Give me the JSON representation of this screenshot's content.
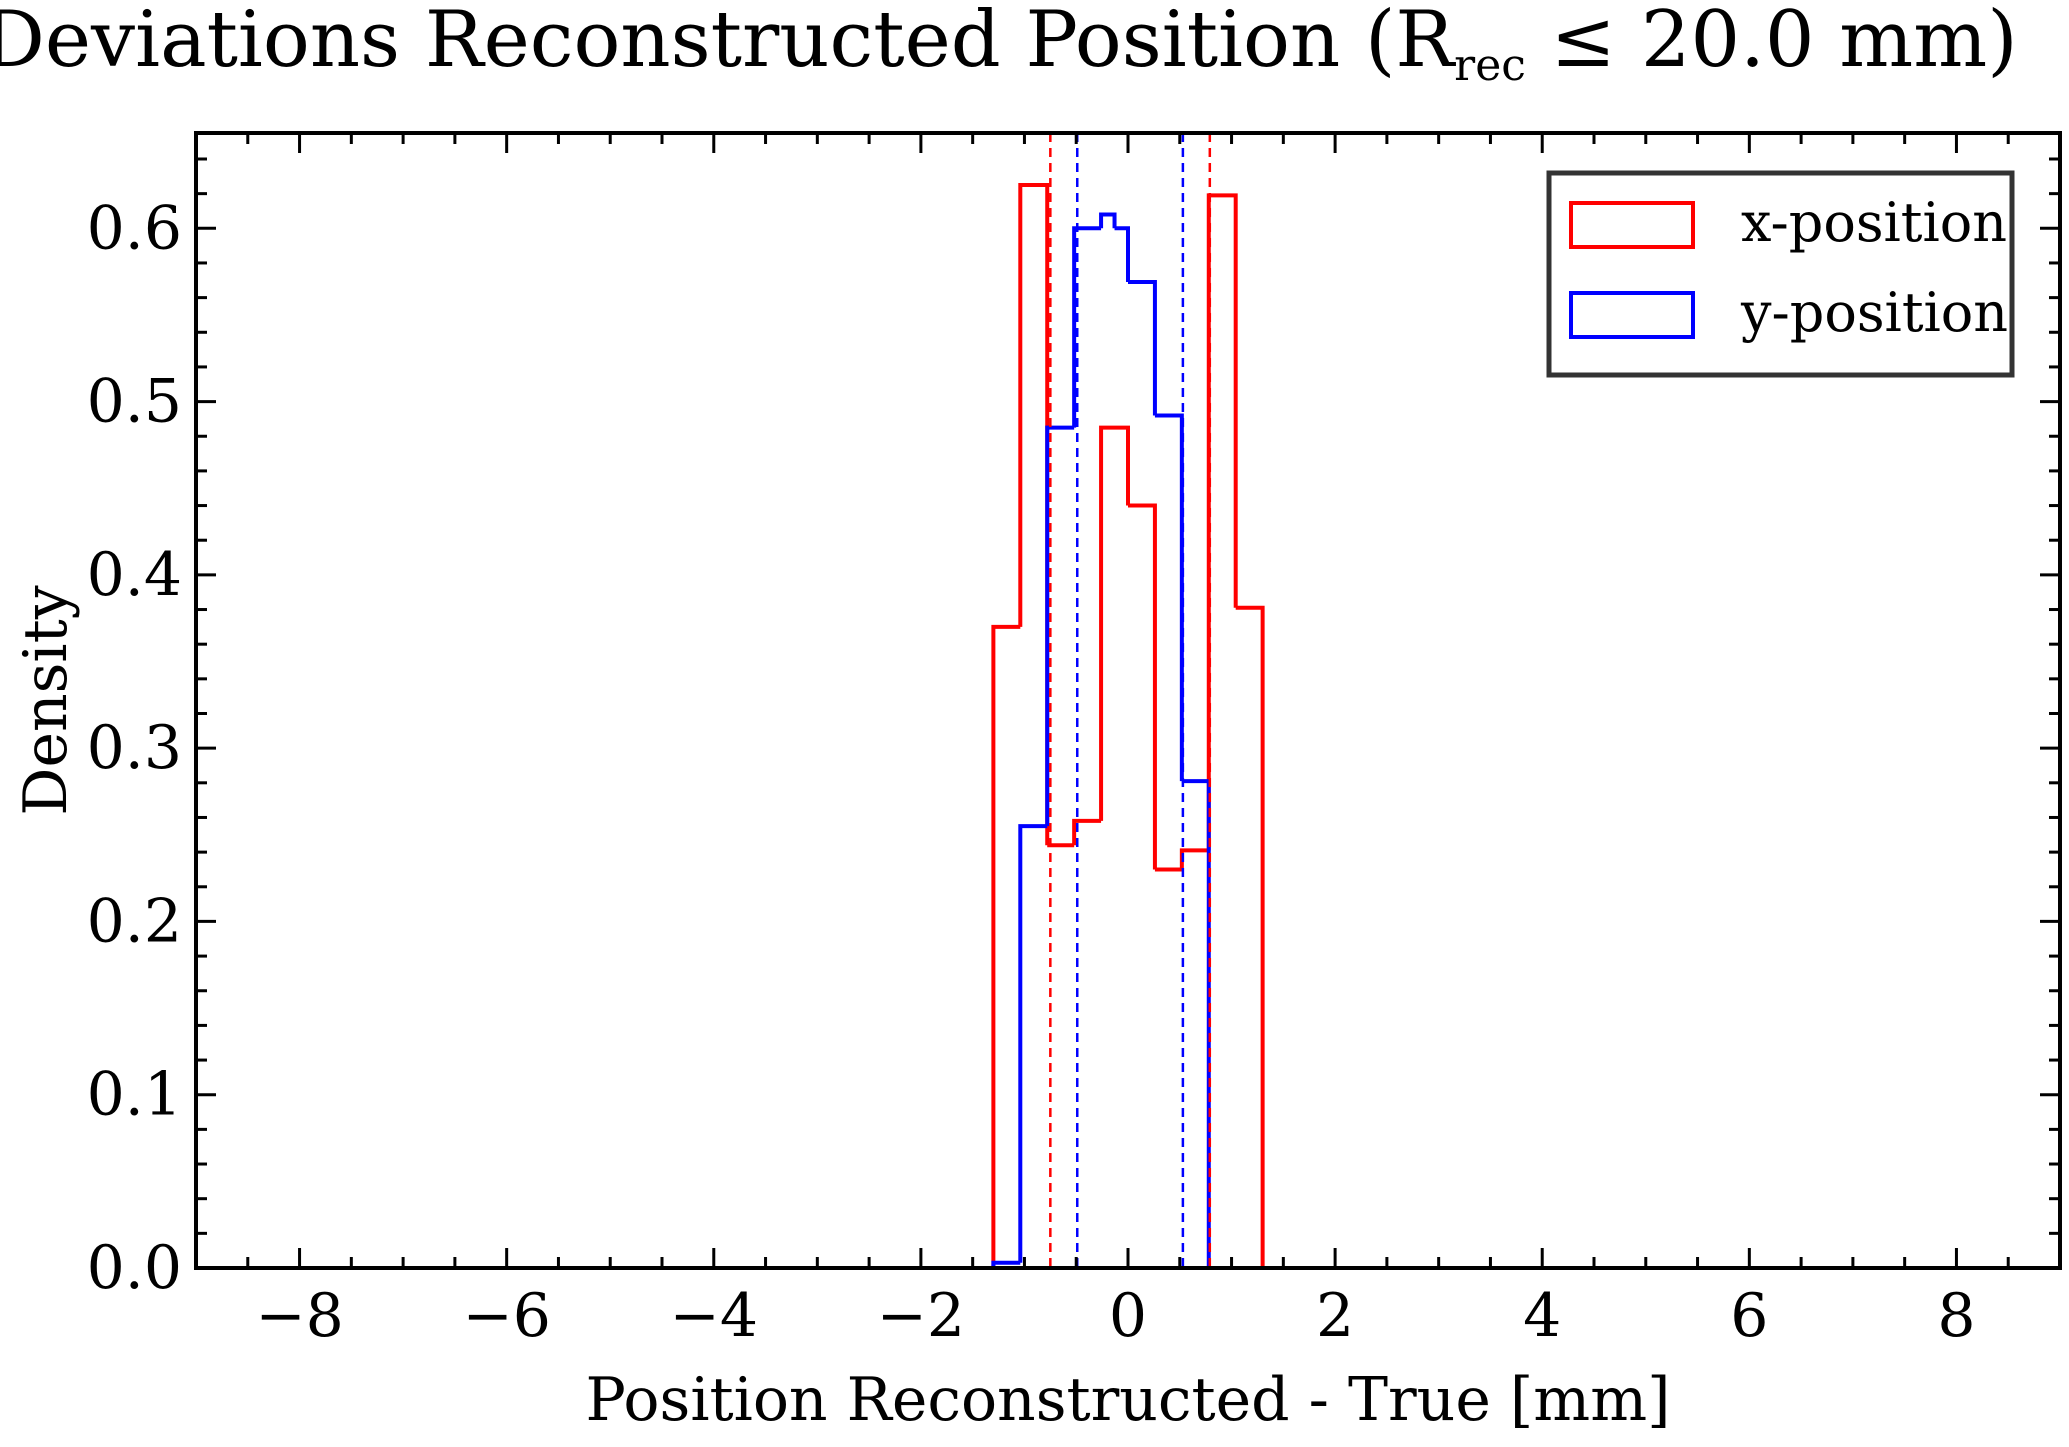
{
  "chart_data": {
    "type": "histogram",
    "title_main": "Deviations Reconstructed Position (R",
    "title_sub": "rec",
    "title_rest": " ≤ 20.0 mm)",
    "xlabel": "Position Reconstructed - True [mm]",
    "ylabel": "Density",
    "xlim": [
      -9,
      9
    ],
    "ylim": [
      0,
      0.655
    ],
    "xticks": [
      -8,
      -6,
      -4,
      -2,
      0,
      2,
      4,
      6,
      8
    ],
    "xtick_labels": [
      "−8",
      "−6",
      "−4",
      "−2",
      "0",
      "2",
      "4",
      "6",
      "8"
    ],
    "yticks": [
      0.0,
      0.1,
      0.2,
      0.3,
      0.4,
      0.5,
      0.6
    ],
    "ytick_labels": [
      "0.0",
      "0.1",
      "0.2",
      "0.3",
      "0.4",
      "0.5",
      "0.6"
    ],
    "grid": false,
    "legend_position": "top-right",
    "series": [
      {
        "name": "x-position",
        "color": "#ff0000",
        "bin_edges": [
          -1.3,
          -1.04,
          -0.78,
          -0.52,
          -0.26,
          0.0,
          0.26,
          0.52,
          0.78,
          1.04,
          1.3
        ],
        "values": [
          0.37,
          0.625,
          0.244,
          0.258,
          0.485,
          0.44,
          0.23,
          0.241,
          0.619,
          0.381
        ],
        "vlines": [
          -0.75,
          0.79
        ]
      },
      {
        "name": "y-position",
        "color": "#0000ff",
        "bin_edges": [
          -1.3,
          -1.04,
          -0.78,
          -0.52,
          -0.26,
          -0.13,
          0.0,
          0.26,
          0.52,
          0.78,
          1.04
        ],
        "values": [
          0.003,
          0.255,
          0.485,
          0.6,
          0.608,
          0.6,
          0.569,
          0.492,
          0.281,
          0.0
        ],
        "vlines": [
          -0.49,
          0.53
        ]
      }
    ]
  }
}
